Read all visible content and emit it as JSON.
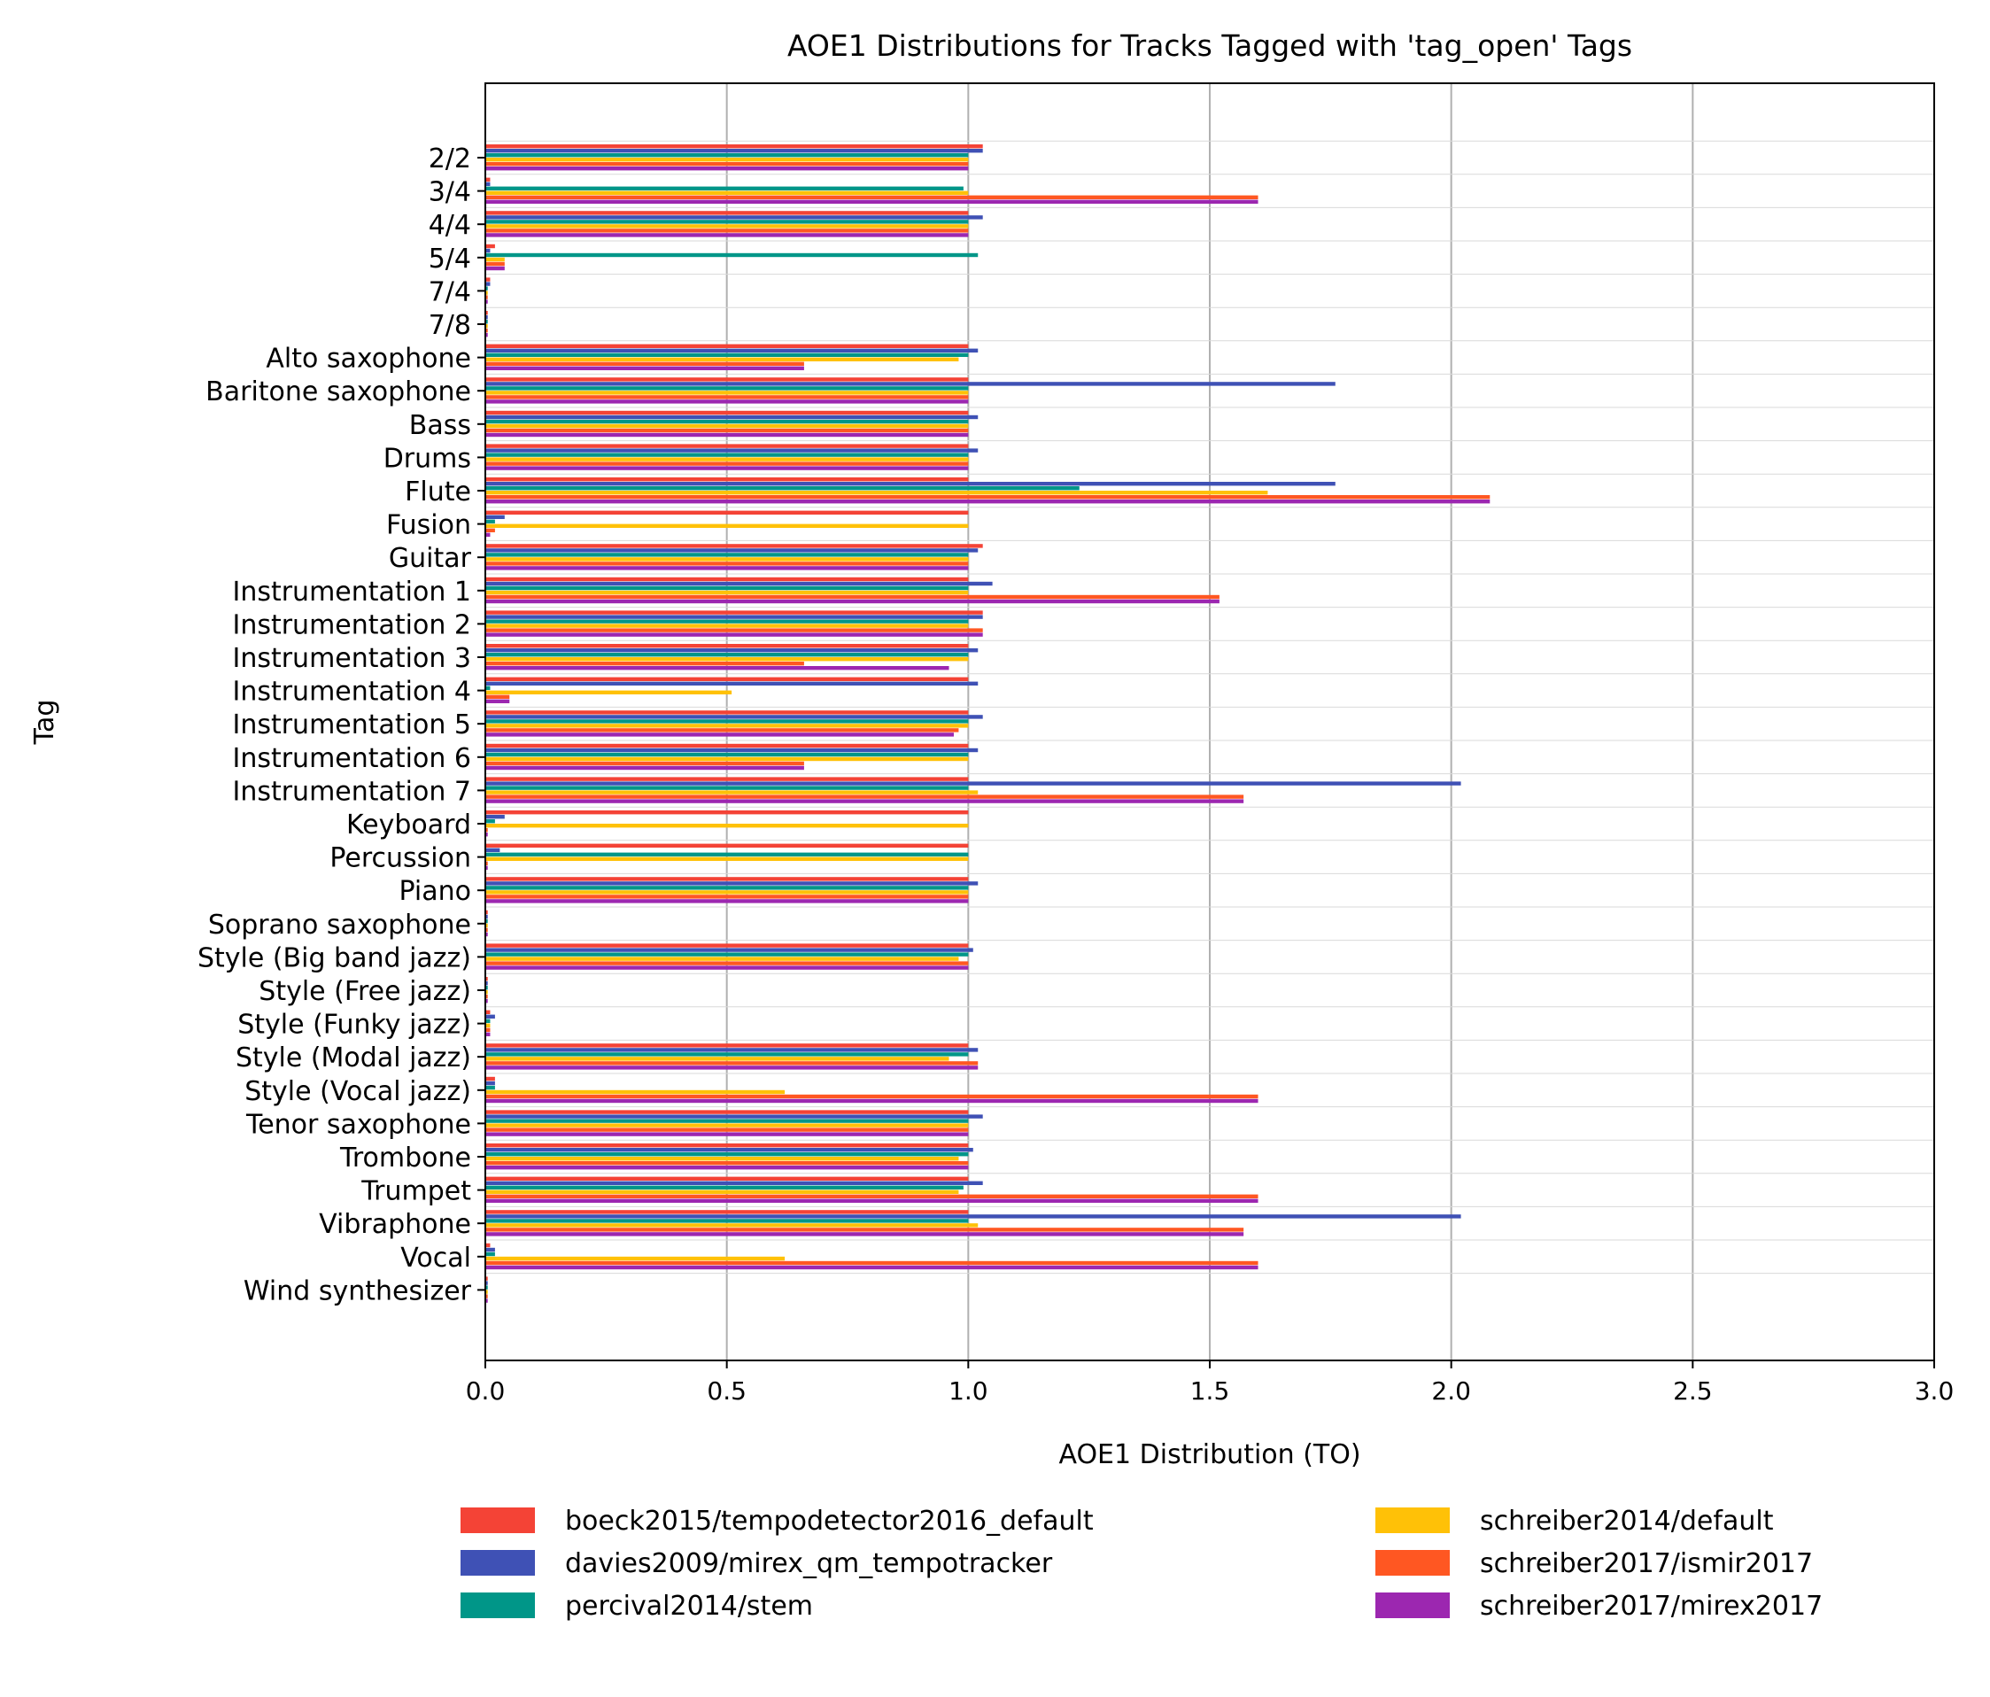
{
  "chart_data": {
    "type": "bar",
    "orientation": "horizontal",
    "title": "AOE1 Distributions for Tracks Tagged with 'tag_open' Tags",
    "xlabel": "AOE1 Distribution (TO)",
    "ylabel": "Tag",
    "xlim": [
      0,
      3
    ],
    "x_ticks": [
      "0.0",
      "0.5",
      "1.0",
      "1.5",
      "2.0",
      "2.5",
      "3.0"
    ],
    "grid": "vertical",
    "legend_position": "bottom",
    "categories": [
      "2/2",
      "3/4",
      "4/4",
      "5/4",
      "7/4",
      "7/8",
      "Alto saxophone",
      "Baritone saxophone",
      "Bass",
      "Drums",
      "Flute",
      "Fusion",
      "Guitar",
      "Instrumentation 1",
      "Instrumentation 2",
      "Instrumentation 3",
      "Instrumentation 4",
      "Instrumentation 5",
      "Instrumentation 6",
      "Instrumentation 7",
      "Keyboard",
      "Percussion",
      "Piano",
      "Soprano saxophone",
      "Style (Big band jazz)",
      "Style (Free jazz)",
      "Style (Funky jazz)",
      "Style (Modal jazz)",
      "Style (Vocal jazz)",
      "Tenor saxophone",
      "Trombone",
      "Trumpet",
      "Vibraphone",
      "Vocal",
      "Wind synthesizer"
    ],
    "series": [
      {
        "name": "boeck2015/tempodetector2016_default",
        "color": "#F44336",
        "values": [
          1.03,
          0.01,
          1.0,
          0.02,
          0.01,
          0.005,
          1.0,
          1.0,
          1.0,
          1.0,
          1.0,
          1.0,
          1.03,
          1.0,
          1.03,
          1.0,
          1.0,
          1.0,
          1.0,
          1.0,
          1.0,
          1.0,
          1.0,
          0.005,
          1.0,
          0.005,
          0.01,
          1.0,
          0.02,
          1.0,
          1.0,
          1.0,
          1.0,
          0.01,
          0.005
        ]
      },
      {
        "name": "davies2009/mirex_qm_tempotracker",
        "color": "#3F51B5",
        "values": [
          1.03,
          0.01,
          1.03,
          0.01,
          0.01,
          0.005,
          1.02,
          1.76,
          1.02,
          1.02,
          1.76,
          0.04,
          1.02,
          1.05,
          1.03,
          1.02,
          1.02,
          1.03,
          1.02,
          2.02,
          0.04,
          0.03,
          1.02,
          0.005,
          1.01,
          0.005,
          0.02,
          1.02,
          0.02,
          1.03,
          1.01,
          1.03,
          2.02,
          0.02,
          0.005
        ]
      },
      {
        "name": "percival2014/stem",
        "color": "#009688",
        "values": [
          1.0,
          0.99,
          1.0,
          1.02,
          0.005,
          0.005,
          1.0,
          1.0,
          1.0,
          1.0,
          1.23,
          0.02,
          1.0,
          1.0,
          1.0,
          1.0,
          0.01,
          1.0,
          1.0,
          1.0,
          0.02,
          1.0,
          1.0,
          0.005,
          1.0,
          0.005,
          0.01,
          1.0,
          0.02,
          1.0,
          1.0,
          0.99,
          1.0,
          0.02,
          0.005
        ]
      },
      {
        "name": "schreiber2014/default",
        "color": "#FFC107",
        "values": [
          1.0,
          1.0,
          1.0,
          0.04,
          0.005,
          0.005,
          0.98,
          1.0,
          1.0,
          1.0,
          1.62,
          1.0,
          1.0,
          1.0,
          1.0,
          1.0,
          0.51,
          1.0,
          1.0,
          1.02,
          1.0,
          1.0,
          1.0,
          0.005,
          0.98,
          0.005,
          0.01,
          0.96,
          0.62,
          1.0,
          0.98,
          0.98,
          1.02,
          0.62,
          0.005
        ]
      },
      {
        "name": "schreiber2017/ismir2017",
        "color": "#FF5722",
        "values": [
          1.0,
          1.6,
          1.0,
          0.04,
          0.005,
          0.005,
          0.66,
          1.0,
          1.0,
          1.0,
          2.08,
          0.02,
          1.0,
          1.52,
          1.03,
          0.66,
          0.05,
          0.98,
          0.66,
          1.57,
          0.005,
          0.005,
          1.0,
          0.005,
          1.0,
          0.005,
          0.01,
          1.02,
          1.6,
          1.0,
          1.0,
          1.6,
          1.57,
          1.6,
          0.005
        ]
      },
      {
        "name": "schreiber2017/mirex2017",
        "color": "#9C27B0",
        "values": [
          1.0,
          1.6,
          1.0,
          0.04,
          0.005,
          0.005,
          0.66,
          1.0,
          1.0,
          1.0,
          2.08,
          0.01,
          1.0,
          1.52,
          1.03,
          0.96,
          0.05,
          0.97,
          0.66,
          1.57,
          0.005,
          0.005,
          1.0,
          0.005,
          1.0,
          0.005,
          0.01,
          1.02,
          1.6,
          1.0,
          1.0,
          1.6,
          1.57,
          1.6,
          0.005
        ]
      }
    ]
  }
}
